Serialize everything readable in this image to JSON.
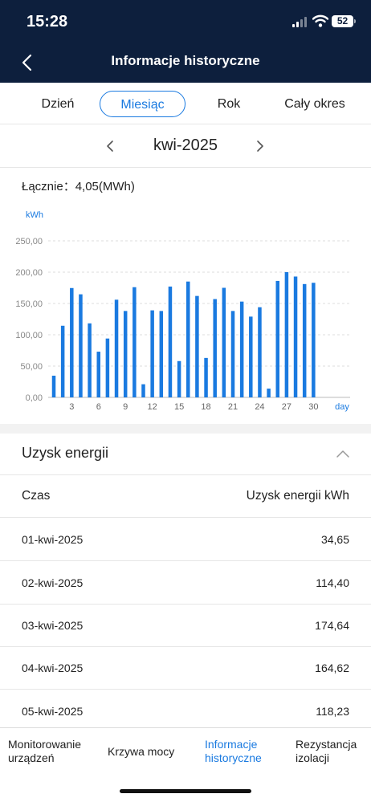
{
  "status_bar": {
    "time": "15:28",
    "battery": "52"
  },
  "header": {
    "title": "Informacje historyczne"
  },
  "tabs": [
    {
      "label": "Dzień",
      "active": false
    },
    {
      "label": "Miesiąc",
      "active": true
    },
    {
      "label": "Rok",
      "active": false
    },
    {
      "label": "Cały okres",
      "active": false
    }
  ],
  "period": {
    "label": "kwi-2025"
  },
  "total": {
    "label": "Łącznie：4,05(MWh)"
  },
  "chart_data": {
    "type": "bar",
    "ylabel": "kWh",
    "xlabel": "day",
    "ylim": [
      0,
      250
    ],
    "yticks": [
      "0,00",
      "50,00",
      "100,00",
      "150,00",
      "200,00",
      "250,00"
    ],
    "xtick_labels": [
      "3",
      "6",
      "9",
      "12",
      "15",
      "18",
      "21",
      "24",
      "27",
      "30"
    ],
    "grid": true,
    "color": "#1a7ae0",
    "categories": [
      1,
      2,
      3,
      4,
      5,
      6,
      7,
      8,
      9,
      10,
      11,
      12,
      13,
      14,
      15,
      16,
      17,
      18,
      19,
      20,
      21,
      22,
      23,
      24,
      25,
      26,
      27,
      28,
      29,
      30
    ],
    "values": [
      34.65,
      114.4,
      174.64,
      164.62,
      118.23,
      73,
      94,
      156,
      138,
      176,
      21,
      139,
      138,
      177,
      58,
      185,
      162,
      63,
      157,
      175,
      138,
      153,
      129,
      144,
      14,
      186,
      200,
      193,
      181,
      183
    ]
  },
  "section": {
    "title": "Uzysk energii"
  },
  "table": {
    "headers": [
      "Czas",
      "Uzysk energii kWh"
    ],
    "rows": [
      {
        "date": "01-kwi-2025",
        "value": "34,65"
      },
      {
        "date": "02-kwi-2025",
        "value": "114,40"
      },
      {
        "date": "03-kwi-2025",
        "value": "174,64"
      },
      {
        "date": "04-kwi-2025",
        "value": "164,62"
      },
      {
        "date": "05-kwi-2025",
        "value": "118,23"
      }
    ]
  },
  "bottom_nav": [
    {
      "label": "Monitorowanie\nurządzeń",
      "active": false
    },
    {
      "label": "Krzywa mocy",
      "active": false
    },
    {
      "label": "Informacje\nhistoryczne",
      "active": true
    },
    {
      "label": "Rezystancja\nizolacji",
      "active": false
    }
  ]
}
